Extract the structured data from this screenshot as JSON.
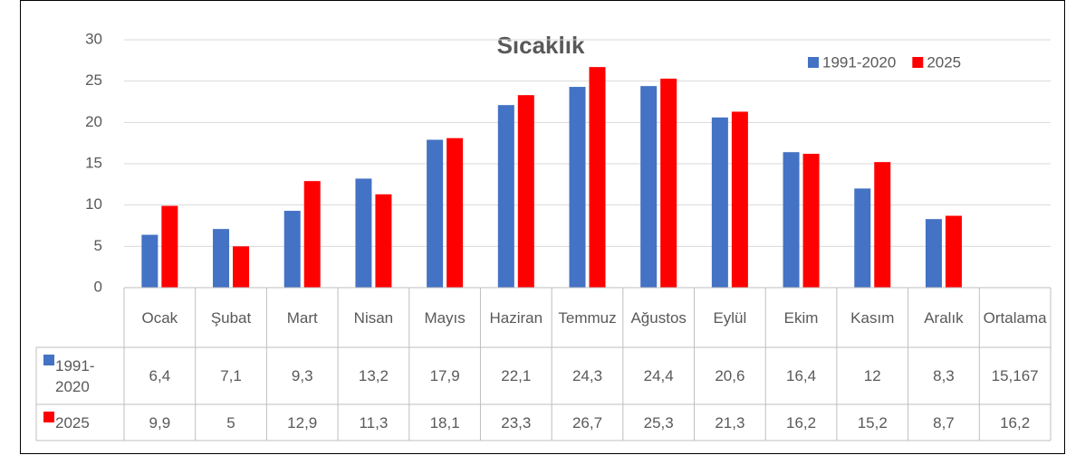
{
  "chart_data": {
    "type": "bar",
    "title": "Sıcaklık",
    "categories": [
      "Ocak",
      "Şubat",
      "Mart",
      "Nisan",
      "Mayıs",
      "Haziran",
      "Temmuz",
      "Ağustos",
      "Eylül",
      "Ekim",
      "Kasım",
      "Aralık"
    ],
    "average_category": "Ortalama",
    "series": [
      {
        "name": "1991-2020",
        "color": "#4472c4",
        "values": [
          6.4,
          7.1,
          9.3,
          13.2,
          17.9,
          22.1,
          24.3,
          24.4,
          20.6,
          16.4,
          12,
          8.3
        ],
        "value_labels": [
          "6,4",
          "7,1",
          "9,3",
          "13,2",
          "17,9",
          "22,1",
          "24,3",
          "24,4",
          "20,6",
          "16,4",
          "12",
          "8,3"
        ],
        "average": "15,167"
      },
      {
        "name": "2025",
        "color": "#ff0000",
        "values": [
          9.9,
          5,
          12.9,
          11.3,
          18.1,
          23.3,
          26.7,
          25.3,
          21.3,
          16.2,
          15.2,
          8.7
        ],
        "value_labels": [
          "9,9",
          "5",
          "12,9",
          "11,3",
          "18,1",
          "23,3",
          "26,7",
          "25,3",
          "21,3",
          "16,2",
          "15,2",
          "8,7"
        ],
        "average": "16,2"
      }
    ],
    "ylim": [
      0,
      30
    ],
    "yticks": [
      0,
      5,
      10,
      15,
      20,
      25,
      30
    ],
    "grid": true,
    "legend": "top-right",
    "data_table": true
  }
}
